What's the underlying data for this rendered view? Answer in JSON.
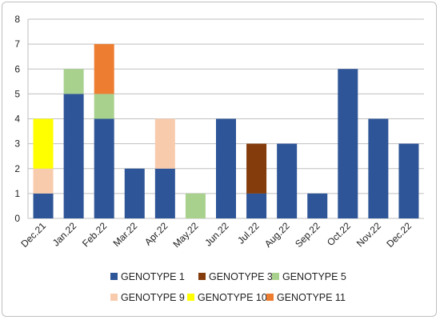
{
  "chart_data": {
    "type": "bar",
    "stacked": true,
    "categories": [
      "Dec.21",
      "Jan.22",
      "Feb.22",
      "Mar.22",
      "Apr.22",
      "May.22",
      "Jun.22",
      "Jul.22",
      "Aug.22",
      "Sep.22",
      "Oct.22",
      "Nov.22",
      "Dec.22"
    ],
    "series": [
      {
        "name": "GENOTYPE 1",
        "color": "#2e5597",
        "values": [
          1,
          5,
          4,
          2,
          2,
          0,
          4,
          1,
          3,
          1,
          6,
          4,
          3
        ]
      },
      {
        "name": "GENOTYPE 3",
        "color": "#843c0c",
        "values": [
          0,
          0,
          0,
          0,
          0,
          0,
          0,
          2,
          0,
          0,
          0,
          0,
          0
        ]
      },
      {
        "name": "GENOTYPE 5",
        "color": "#a9d18e",
        "values": [
          0,
          1,
          1,
          0,
          0,
          1,
          0,
          0,
          0,
          0,
          0,
          0,
          0
        ]
      },
      {
        "name": "GENOTYPE 9",
        "color": "#f8cbad",
        "values": [
          1,
          0,
          0,
          0,
          2,
          0,
          0,
          0,
          0,
          0,
          0,
          0,
          0
        ]
      },
      {
        "name": "GENOTYPE 10",
        "color": "#ffff00",
        "values": [
          2,
          0,
          0,
          0,
          0,
          0,
          0,
          0,
          0,
          0,
          0,
          0,
          0
        ]
      },
      {
        "name": "GENOTYPE 11",
        "color": "#ed7d31",
        "values": [
          0,
          0,
          2,
          0,
          0,
          0,
          0,
          0,
          0,
          0,
          0,
          0,
          0
        ]
      }
    ],
    "yticks": [
      "0",
      "1",
      "2",
      "3",
      "4",
      "5",
      "6",
      "7",
      "8"
    ],
    "ylim": [
      0,
      8
    ],
    "grid": true,
    "legend": "bottom",
    "title": "",
    "xlabel": "",
    "ylabel": ""
  }
}
